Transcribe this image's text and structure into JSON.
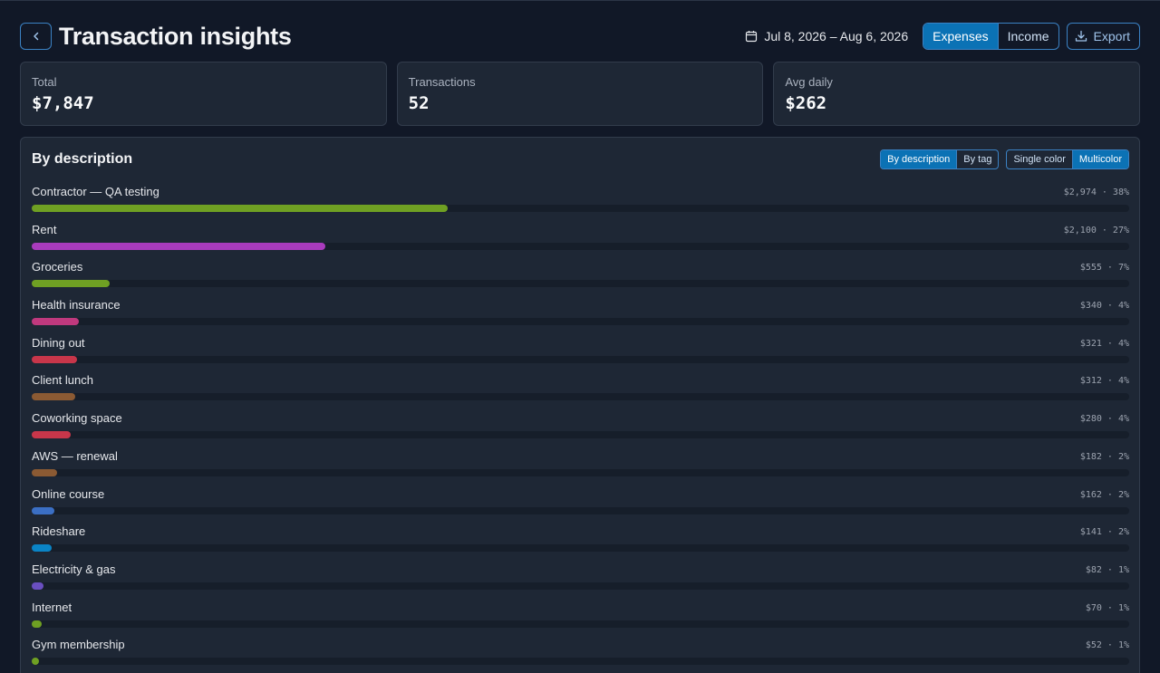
{
  "header": {
    "title": "Transaction insights",
    "date_range": "Jul 8, 2026 – Aug 6, 2026",
    "toggle": [
      "Expenses",
      "Income"
    ],
    "active_toggle": "Expenses",
    "export_label": "Export"
  },
  "stats": [
    {
      "label": "Total",
      "value": "$7,847"
    },
    {
      "label": "Transactions",
      "value": "52"
    },
    {
      "label": "Avg daily",
      "value": "$262"
    }
  ],
  "panel": {
    "title": "By description",
    "group_toggle": [
      "By description",
      "By tag"
    ],
    "active_group": "By description",
    "color_toggle": [
      "Single color",
      "Multicolor"
    ],
    "active_color": "Multicolor"
  },
  "chart_data": {
    "type": "bar",
    "orientation": "horizontal",
    "title": "By description",
    "max_value": 7847,
    "items": [
      {
        "label": "Contractor — QA testing",
        "value_text": "$2,974 · 38%",
        "value": 2974,
        "color": "#6fa023"
      },
      {
        "label": "Rent",
        "value_text": "$2,100 · 27%",
        "value": 2100,
        "color": "#a93bbd"
      },
      {
        "label": "Groceries",
        "value_text": "$555 · 7%",
        "value": 555,
        "color": "#6fa023"
      },
      {
        "label": "Health insurance",
        "value_text": "$340 · 4%",
        "value": 340,
        "color": "#c0397e"
      },
      {
        "label": "Dining out",
        "value_text": "$321 · 4%",
        "value": 321,
        "color": "#c8364a"
      },
      {
        "label": "Client lunch",
        "value_text": "$312 · 4%",
        "value": 312,
        "color": "#8b5a33"
      },
      {
        "label": "Coworking space",
        "value_text": "$280 · 4%",
        "value": 280,
        "color": "#c8364a"
      },
      {
        "label": "AWS — renewal",
        "value_text": "$182 · 2%",
        "value": 182,
        "color": "#8b5a33"
      },
      {
        "label": "Online course",
        "value_text": "$162 · 2%",
        "value": 162,
        "color": "#3b6fc4"
      },
      {
        "label": "Rideshare",
        "value_text": "$141 · 2%",
        "value": 141,
        "color": "#0a84c6"
      },
      {
        "label": "Electricity & gas",
        "value_text": "$82 · 1%",
        "value": 82,
        "color": "#6a4fc0"
      },
      {
        "label": "Internet",
        "value_text": "$70 · 1%",
        "value": 70,
        "color": "#6fa023"
      },
      {
        "label": "Gym membership",
        "value_text": "$52 · 1%",
        "value": 52,
        "color": "#6fa023"
      }
    ]
  },
  "icons": {
    "back": "chevron-left-icon",
    "calendar": "calendar-icon",
    "export": "download-icon"
  }
}
